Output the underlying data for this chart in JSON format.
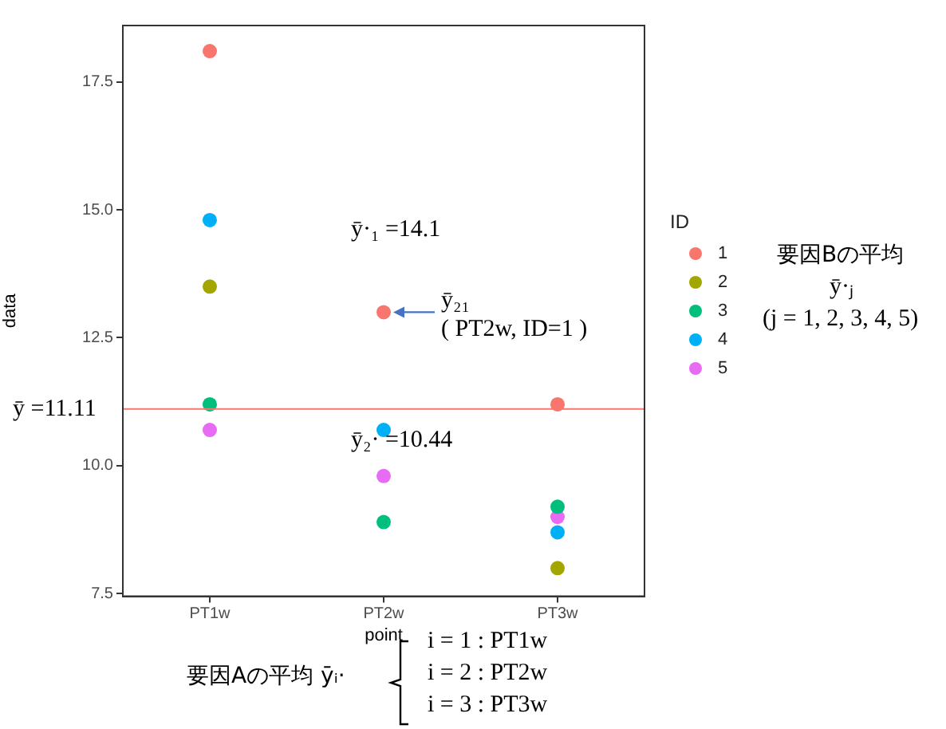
{
  "chart_data": {
    "type": "scatter",
    "xlabel": "point",
    "ylabel": "data",
    "legend_title": "ID",
    "legend": "right",
    "marker": "circle",
    "grid": false,
    "categories": [
      "PT1w",
      "PT2w",
      "PT3w"
    ],
    "ylim": [
      7.45,
      18.6
    ],
    "yticks": [
      {
        "value": 7.5,
        "label": "7.5"
      },
      {
        "value": 10,
        "label": "10.0"
      },
      {
        "value": 12.5,
        "label": "12.5"
      },
      {
        "value": 15,
        "label": "15.0"
      },
      {
        "value": 17.5,
        "label": "17.5"
      }
    ],
    "series": [
      {
        "name": "1",
        "color": "#f8766d",
        "values": [
          18.1,
          13.0,
          11.2
        ]
      },
      {
        "name": "2",
        "color": "#a3a500",
        "values": [
          13.5,
          null,
          8.0
        ]
      },
      {
        "name": "3",
        "color": "#00bf7d",
        "values": [
          11.2,
          8.9,
          9.2
        ]
      },
      {
        "name": "4",
        "color": "#00b0f6",
        "values": [
          14.8,
          10.7,
          8.7
        ]
      },
      {
        "name": "5",
        "color": "#e76bf3",
        "values": [
          10.7,
          9.8,
          9.0
        ]
      }
    ],
    "ref_lines": [
      {
        "axis": "y",
        "value": 11.11,
        "label": "ȳ =11.11",
        "color": "#f8766d"
      }
    ],
    "annotations": [
      "ȳ·₁ =14.1",
      "ȳ₂· =10.44",
      {
        "text": "ȳ₂₁\n( PT2w, ID=1 )",
        "x": "PT2w",
        "y": 13.0
      },
      "要因Bの平均",
      "ȳ·ⱼ",
      "(j = 1, 2, 3, 4, 5)",
      "要因Aの平均 ȳᵢ·",
      "i = 1 : PT1w",
      "i = 2 : PT2w",
      "i = 3 : PT3w"
    ]
  }
}
